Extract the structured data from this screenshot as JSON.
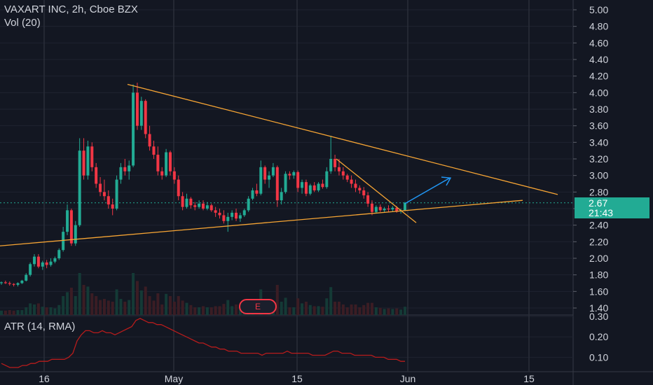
{
  "header": {
    "title": "VAXART INC, 2h, Cboe BZX",
    "volume_label": "Vol (20)"
  },
  "indicator": {
    "atr_label": "ATR (14, RMA)",
    "atr_ticks": [
      "0.30",
      "0.20",
      "0.10"
    ],
    "atr_ylim": [
      0.05,
      0.3
    ],
    "line_color": "#b71c1c"
  },
  "price_badge": {
    "price": "2.67",
    "countdown": "21:43",
    "color": "#22ab94"
  },
  "earnings_marker": {
    "label": "E"
  },
  "colors": {
    "background": "#131722",
    "up": "#22ab94",
    "down": "#f23645",
    "trendline": "#f7a534",
    "arrow": "#2196f3",
    "grid": "#363a45"
  },
  "chart_data": {
    "type": "candlestick",
    "title": "VAXART INC, 2h, Cboe BZX",
    "y_ticks": [
      "5.00",
      "4.80",
      "4.60",
      "4.40",
      "4.20",
      "4.00",
      "3.80",
      "3.60",
      "3.40",
      "3.20",
      "3.00",
      "2.80",
      "2.60",
      "2.40",
      "2.20",
      "2.00",
      "1.80",
      "1.60",
      "1.40"
    ],
    "ylim": [
      1.4,
      5.0
    ],
    "x_ticks": [
      "16",
      "May",
      "15",
      "Jun",
      "15"
    ],
    "last_price": 2.67,
    "candles": [
      {
        "o": 1.7,
        "h": 1.72,
        "l": 1.68,
        "c": 1.71
      },
      {
        "o": 1.71,
        "h": 1.73,
        "l": 1.69,
        "c": 1.7
      },
      {
        "o": 1.7,
        "h": 1.72,
        "l": 1.67,
        "c": 1.69
      },
      {
        "o": 1.69,
        "h": 1.7,
        "l": 1.66,
        "c": 1.68
      },
      {
        "o": 1.68,
        "h": 1.71,
        "l": 1.66,
        "c": 1.7
      },
      {
        "o": 1.7,
        "h": 1.74,
        "l": 1.69,
        "c": 1.73
      },
      {
        "o": 1.73,
        "h": 1.82,
        "l": 1.72,
        "c": 1.8
      },
      {
        "o": 1.8,
        "h": 1.95,
        "l": 1.78,
        "c": 1.93
      },
      {
        "o": 1.93,
        "h": 2.05,
        "l": 1.9,
        "c": 2.02
      },
      {
        "o": 2.02,
        "h": 2.05,
        "l": 1.88,
        "c": 1.9
      },
      {
        "o": 1.9,
        "h": 1.97,
        "l": 1.86,
        "c": 1.95
      },
      {
        "o": 1.95,
        "h": 1.98,
        "l": 1.88,
        "c": 1.92
      },
      {
        "o": 1.92,
        "h": 2.0,
        "l": 1.9,
        "c": 1.96
      },
      {
        "o": 1.96,
        "h": 2.02,
        "l": 1.94,
        "c": 2.0
      },
      {
        "o": 2.0,
        "h": 2.12,
        "l": 1.98,
        "c": 2.1
      },
      {
        "o": 2.1,
        "h": 2.38,
        "l": 2.08,
        "c": 2.32
      },
      {
        "o": 2.32,
        "h": 2.65,
        "l": 2.28,
        "c": 2.58
      },
      {
        "o": 2.58,
        "h": 2.6,
        "l": 2.15,
        "c": 2.18
      },
      {
        "o": 2.18,
        "h": 2.45,
        "l": 2.15,
        "c": 2.4
      },
      {
        "o": 2.4,
        "h": 3.45,
        "l": 2.38,
        "c": 3.3
      },
      {
        "o": 3.3,
        "h": 3.45,
        "l": 2.95,
        "c": 3.0
      },
      {
        "o": 3.0,
        "h": 3.42,
        "l": 2.95,
        "c": 3.35
      },
      {
        "o": 3.35,
        "h": 3.4,
        "l": 3.05,
        "c": 3.1
      },
      {
        "o": 3.1,
        "h": 3.15,
        "l": 2.85,
        "c": 2.9
      },
      {
        "o": 2.9,
        "h": 2.98,
        "l": 2.75,
        "c": 2.8
      },
      {
        "o": 2.8,
        "h": 2.95,
        "l": 2.7,
        "c": 2.75
      },
      {
        "o": 2.75,
        "h": 2.82,
        "l": 2.6,
        "c": 2.65
      },
      {
        "o": 2.65,
        "h": 2.72,
        "l": 2.52,
        "c": 2.6
      },
      {
        "o": 2.6,
        "h": 3.0,
        "l": 2.58,
        "c": 2.95
      },
      {
        "o": 2.95,
        "h": 3.15,
        "l": 2.9,
        "c": 3.1
      },
      {
        "o": 3.1,
        "h": 3.2,
        "l": 3.0,
        "c": 3.05
      },
      {
        "o": 3.05,
        "h": 3.18,
        "l": 2.95,
        "c": 3.12
      },
      {
        "o": 3.12,
        "h": 4.1,
        "l": 3.1,
        "c": 4.0
      },
      {
        "o": 4.0,
        "h": 4.12,
        "l": 3.55,
        "c": 3.6
      },
      {
        "o": 3.6,
        "h": 3.95,
        "l": 3.55,
        "c": 3.9
      },
      {
        "o": 3.9,
        "h": 3.92,
        "l": 3.45,
        "c": 3.5
      },
      {
        "o": 3.5,
        "h": 3.6,
        "l": 3.3,
        "c": 3.35
      },
      {
        "o": 3.35,
        "h": 3.42,
        "l": 3.2,
        "c": 3.25
      },
      {
        "o": 3.25,
        "h": 3.35,
        "l": 3.0,
        "c": 3.05
      },
      {
        "o": 3.05,
        "h": 3.1,
        "l": 2.95,
        "c": 3.0
      },
      {
        "o": 3.0,
        "h": 3.32,
        "l": 2.98,
        "c": 3.28
      },
      {
        "o": 3.28,
        "h": 3.3,
        "l": 3.0,
        "c": 3.05
      },
      {
        "o": 3.05,
        "h": 3.1,
        "l": 2.9,
        "c": 2.95
      },
      {
        "o": 2.95,
        "h": 3.0,
        "l": 2.7,
        "c": 2.75
      },
      {
        "o": 2.75,
        "h": 2.8,
        "l": 2.58,
        "c": 2.62
      },
      {
        "o": 2.62,
        "h": 2.78,
        "l": 2.6,
        "c": 2.72
      },
      {
        "o": 2.72,
        "h": 2.74,
        "l": 2.6,
        "c": 2.64
      },
      {
        "o": 2.64,
        "h": 2.68,
        "l": 2.58,
        "c": 2.62
      },
      {
        "o": 2.62,
        "h": 2.7,
        "l": 2.6,
        "c": 2.66
      },
      {
        "o": 2.66,
        "h": 2.7,
        "l": 2.58,
        "c": 2.6
      },
      {
        "o": 2.6,
        "h": 2.68,
        "l": 2.58,
        "c": 2.64
      },
      {
        "o": 2.64,
        "h": 2.66,
        "l": 2.56,
        "c": 2.58
      },
      {
        "o": 2.58,
        "h": 2.62,
        "l": 2.5,
        "c": 2.55
      },
      {
        "o": 2.55,
        "h": 2.6,
        "l": 2.48,
        "c": 2.52
      },
      {
        "o": 2.52,
        "h": 2.58,
        "l": 2.42,
        "c": 2.45
      },
      {
        "o": 2.45,
        "h": 2.55,
        "l": 2.32,
        "c": 2.5
      },
      {
        "o": 2.5,
        "h": 2.58,
        "l": 2.46,
        "c": 2.55
      },
      {
        "o": 2.55,
        "h": 2.6,
        "l": 2.45,
        "c": 2.48
      },
      {
        "o": 2.48,
        "h": 2.55,
        "l": 2.44,
        "c": 2.52
      },
      {
        "o": 2.52,
        "h": 2.6,
        "l": 2.5,
        "c": 2.58
      },
      {
        "o": 2.58,
        "h": 2.75,
        "l": 2.56,
        "c": 2.72
      },
      {
        "o": 2.72,
        "h": 2.85,
        "l": 2.7,
        "c": 2.82
      },
      {
        "o": 2.82,
        "h": 2.9,
        "l": 2.75,
        "c": 2.78
      },
      {
        "o": 2.78,
        "h": 3.18,
        "l": 2.76,
        "c": 3.1
      },
      {
        "o": 3.1,
        "h": 3.12,
        "l": 2.9,
        "c": 2.95
      },
      {
        "o": 2.95,
        "h": 3.05,
        "l": 2.85,
        "c": 3.0
      },
      {
        "o": 3.0,
        "h": 3.15,
        "l": 2.98,
        "c": 3.1
      },
      {
        "o": 3.1,
        "h": 3.12,
        "l": 2.62,
        "c": 2.7
      },
      {
        "o": 2.7,
        "h": 2.85,
        "l": 2.65,
        "c": 2.8
      },
      {
        "o": 2.8,
        "h": 3.05,
        "l": 2.78,
        "c": 3.02
      },
      {
        "o": 3.02,
        "h": 3.05,
        "l": 2.95,
        "c": 3.0
      },
      {
        "o": 3.0,
        "h": 3.06,
        "l": 2.96,
        "c": 3.04
      },
      {
        "o": 3.04,
        "h": 3.06,
        "l": 2.8,
        "c": 2.85
      },
      {
        "o": 2.85,
        "h": 2.95,
        "l": 2.78,
        "c": 2.92
      },
      {
        "o": 2.92,
        "h": 2.95,
        "l": 2.75,
        "c": 2.78
      },
      {
        "o": 2.78,
        "h": 2.9,
        "l": 2.76,
        "c": 2.88
      },
      {
        "o": 2.88,
        "h": 2.92,
        "l": 2.8,
        "c": 2.82
      },
      {
        "o": 2.82,
        "h": 2.92,
        "l": 2.8,
        "c": 2.9
      },
      {
        "o": 2.9,
        "h": 2.95,
        "l": 2.84,
        "c": 2.86
      },
      {
        "o": 2.86,
        "h": 3.1,
        "l": 2.84,
        "c": 3.05
      },
      {
        "o": 3.05,
        "h": 3.48,
        "l": 3.02,
        "c": 3.2
      },
      {
        "o": 3.2,
        "h": 3.25,
        "l": 3.05,
        "c": 3.1
      },
      {
        "o": 3.1,
        "h": 3.2,
        "l": 3.0,
        "c": 3.05
      },
      {
        "o": 3.05,
        "h": 3.1,
        "l": 2.95,
        "c": 3.0
      },
      {
        "o": 3.0,
        "h": 3.02,
        "l": 2.92,
        "c": 2.95
      },
      {
        "o": 2.95,
        "h": 3.0,
        "l": 2.85,
        "c": 2.9
      },
      {
        "o": 2.9,
        "h": 2.95,
        "l": 2.8,
        "c": 2.85
      },
      {
        "o": 2.85,
        "h": 2.88,
        "l": 2.78,
        "c": 2.82
      },
      {
        "o": 2.82,
        "h": 2.86,
        "l": 2.72,
        "c": 2.76
      },
      {
        "o": 2.76,
        "h": 2.8,
        "l": 2.62,
        "c": 2.66
      },
      {
        "o": 2.66,
        "h": 2.7,
        "l": 2.52,
        "c": 2.56
      },
      {
        "o": 2.56,
        "h": 2.64,
        "l": 2.54,
        "c": 2.62
      },
      {
        "o": 2.62,
        "h": 2.65,
        "l": 2.56,
        "c": 2.58
      },
      {
        "o": 2.58,
        "h": 2.62,
        "l": 2.55,
        "c": 2.6
      },
      {
        "o": 2.6,
        "h": 2.64,
        "l": 2.56,
        "c": 2.59
      },
      {
        "o": 2.59,
        "h": 2.63,
        "l": 2.56,
        "c": 2.61
      },
      {
        "o": 2.61,
        "h": 2.63,
        "l": 2.55,
        "c": 2.57
      },
      {
        "o": 2.57,
        "h": 2.6,
        "l": 2.54,
        "c": 2.58
      },
      {
        "o": 2.58,
        "h": 2.68,
        "l": 2.57,
        "c": 2.67
      }
    ],
    "atr_values": [
      0.07,
      0.06,
      0.05,
      0.05,
      0.05,
      0.06,
      0.06,
      0.07,
      0.07,
      0.08,
      0.08,
      0.08,
      0.09,
      0.09,
      0.09,
      0.09,
      0.1,
      0.12,
      0.18,
      0.21,
      0.23,
      0.23,
      0.22,
      0.22,
      0.23,
      0.22,
      0.22,
      0.21,
      0.22,
      0.23,
      0.24,
      0.25,
      0.28,
      0.29,
      0.28,
      0.27,
      0.27,
      0.26,
      0.26,
      0.25,
      0.24,
      0.23,
      0.22,
      0.21,
      0.2,
      0.19,
      0.18,
      0.17,
      0.17,
      0.16,
      0.15,
      0.15,
      0.14,
      0.14,
      0.13,
      0.13,
      0.13,
      0.12,
      0.12,
      0.12,
      0.12,
      0.12,
      0.11,
      0.12,
      0.12,
      0.12,
      0.12,
      0.12,
      0.13,
      0.12,
      0.12,
      0.12,
      0.12,
      0.12,
      0.11,
      0.11,
      0.11,
      0.11,
      0.12,
      0.13,
      0.13,
      0.12,
      0.12,
      0.12,
      0.11,
      0.11,
      0.11,
      0.11,
      0.11,
      0.1,
      0.1,
      0.1,
      0.09,
      0.09,
      0.09,
      0.08,
      0.08
    ]
  }
}
